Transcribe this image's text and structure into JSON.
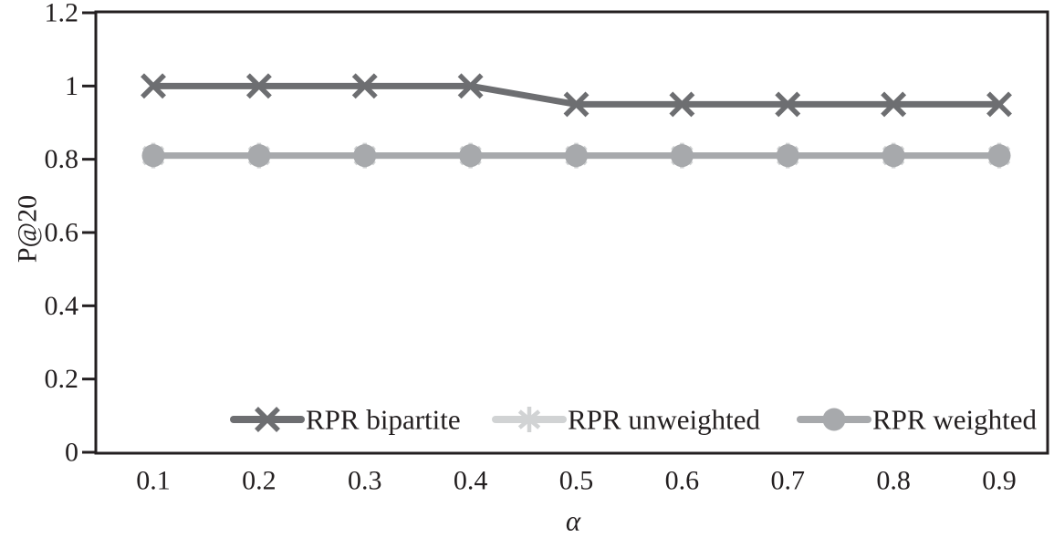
{
  "chart_data": {
    "type": "line",
    "title": "",
    "xlabel": "α",
    "ylabel": "P@20",
    "x": [
      0.1,
      0.2,
      0.3,
      0.4,
      0.5,
      0.6,
      0.7,
      0.8,
      0.9
    ],
    "xtick_labels": [
      "0.1",
      "0.2",
      "0.3",
      "0.4",
      "0.5",
      "0.6",
      "0.7",
      "0.8",
      "0.9"
    ],
    "ylim": [
      0,
      1.2
    ],
    "yticks": [
      0,
      0.2,
      0.4,
      0.6,
      0.8,
      1,
      1.2
    ],
    "ytick_labels": [
      "0",
      "0.2",
      "0.4",
      "0.6",
      "0.8",
      "1",
      "1.2"
    ],
    "grid": false,
    "legend_position": "inside-bottom",
    "axis_color": "#231f20",
    "text_color": "#231f20",
    "series": [
      {
        "name": "RPR bipartite",
        "marker": "x",
        "color": "#6d6e71",
        "values": [
          1.0,
          1.0,
          1.0,
          1.0,
          0.95,
          0.95,
          0.95,
          0.95,
          0.95
        ]
      },
      {
        "name": "RPR unweighted",
        "marker": "asterisk",
        "color": "#d1d3d4",
        "values": [
          0.81,
          0.81,
          0.81,
          0.81,
          0.81,
          0.81,
          0.81,
          0.81,
          0.81
        ]
      },
      {
        "name": "RPR weighted",
        "marker": "circle",
        "color": "#a7a9ac",
        "values": [
          0.81,
          0.81,
          0.81,
          0.81,
          0.81,
          0.81,
          0.81,
          0.81,
          0.81
        ]
      }
    ]
  }
}
